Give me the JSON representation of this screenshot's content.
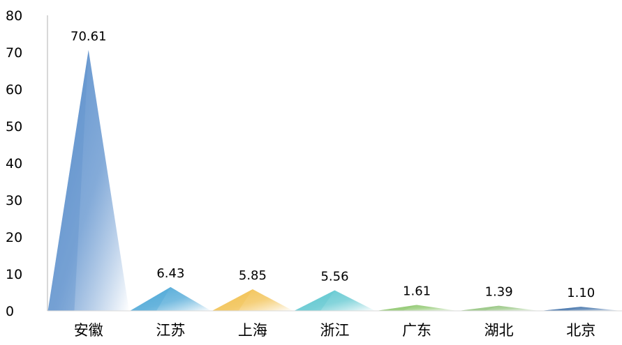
{
  "chart_data": {
    "type": "bar",
    "categories": [
      "安徽",
      "江苏",
      "上海",
      "浙江",
      "广东",
      "湖北",
      "北京"
    ],
    "values": [
      70.61,
      6.43,
      5.85,
      5.56,
      1.61,
      1.39,
      1.1
    ],
    "data_labels": [
      "70.61",
      "6.43",
      "5.85",
      "5.56",
      "1.61",
      "1.39",
      "1.10"
    ],
    "ylim": [
      0,
      80
    ],
    "yticks": [
      0,
      10,
      20,
      30,
      40,
      50,
      60,
      70,
      80
    ],
    "title": "",
    "xlabel": "",
    "ylabel": "",
    "grid": false,
    "legend": "none",
    "colors": [
      "#5b8fcc",
      "#4aa6d6",
      "#f2c04e",
      "#5cc6cf",
      "#8cc66b",
      "#93c47d",
      "#3e6fa8"
    ]
  }
}
